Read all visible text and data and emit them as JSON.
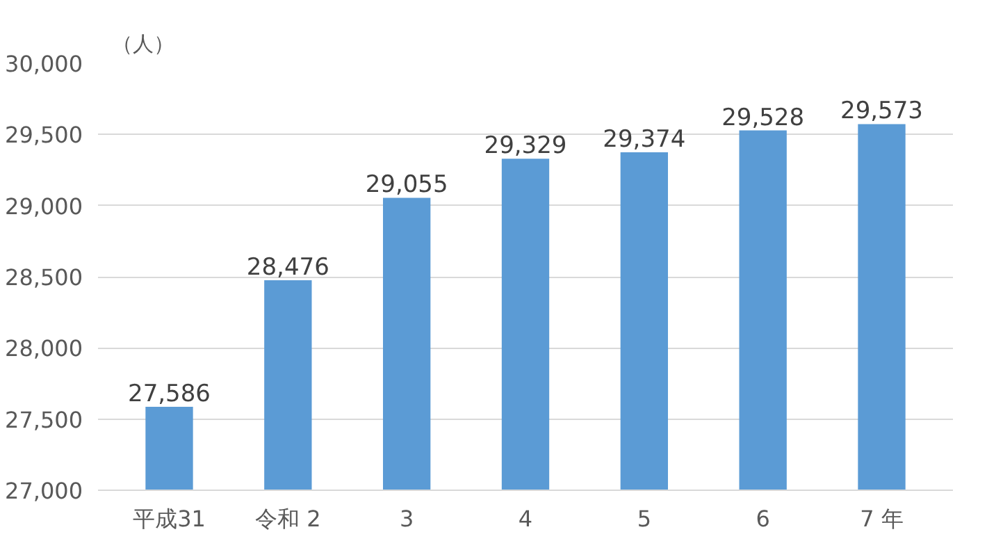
{
  "chart_data": {
    "type": "bar",
    "ylabel": "（人）",
    "categories": [
      "平成31",
      "令和 2",
      "3",
      "4",
      "5",
      "6",
      "7 年"
    ],
    "values": [
      27586,
      28476,
      29055,
      29329,
      29374,
      29528,
      29573
    ],
    "color": "#5b9bd5",
    "ylim": [
      27000,
      30000
    ],
    "yticks": [
      {
        "value": 27000,
        "label": "27,000"
      },
      {
        "value": 27500,
        "label": "27,500"
      },
      {
        "value": 28000,
        "label": "28,000"
      },
      {
        "value": 28500,
        "label": "28,500"
      },
      {
        "value": 29000,
        "label": "29,000"
      },
      {
        "value": 29500,
        "label": "29,500"
      },
      {
        "value": 30000,
        "label": "30,000"
      }
    ],
    "value_labels": [
      "27,586",
      "28,476",
      "29,055",
      "29,329",
      "29,374",
      "29,528",
      "29,573"
    ],
    "grid": "y"
  }
}
